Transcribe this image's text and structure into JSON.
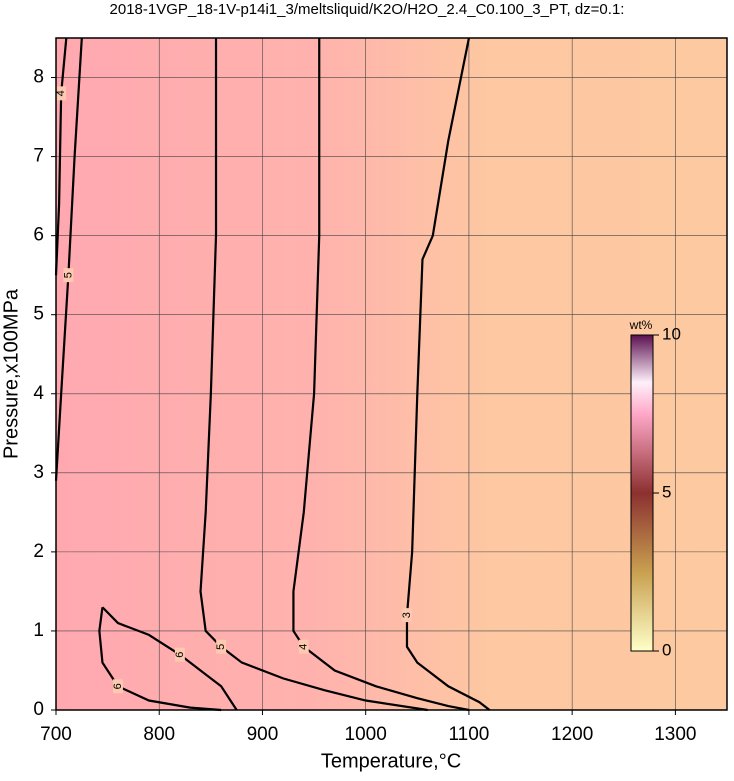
{
  "chart_data": {
    "type": "contour",
    "title": "2018-1VGP_18-1V-p14i1_3/meltsliquid/K2O/H2O_2.4_C0.100_3_PT, dz=0.1:",
    "x_label": "Temperature,°C",
    "y_label": "Pressure,x100MPa",
    "xlim": [
      700,
      1350
    ],
    "ylim": [
      0,
      8.5
    ],
    "xticks": [
      700,
      800,
      900,
      1000,
      1100,
      1200,
      1300
    ],
    "yticks": [
      0,
      1,
      2,
      3,
      4,
      5,
      6,
      7,
      8
    ],
    "grid": true,
    "contours": [
      {
        "level": 3,
        "x": [
          1100,
          1080,
          1065,
          1055,
          1050,
          1045,
          1040,
          1040,
          1050,
          1080,
          1110,
          1120
        ],
        "y": [
          8.5,
          7.2,
          6.0,
          5.7,
          4.0,
          2.0,
          1.2,
          0.8,
          0.6,
          0.3,
          0.1,
          0
        ]
      },
      {
        "level": 4,
        "x": [
          955,
          955,
          950,
          940,
          930,
          930,
          940,
          970,
          1010,
          1050,
          1080,
          1100
        ],
        "y": [
          8.5,
          6.0,
          4.0,
          2.5,
          1.5,
          1.0,
          0.8,
          0.5,
          0.3,
          0.15,
          0.05,
          0
        ]
      },
      {
        "level": 5,
        "x": [
          855,
          855,
          850,
          845,
          840,
          845,
          860,
          880,
          920,
          960,
          1000,
          1060
        ],
        "y": [
          8.5,
          6.0,
          4.0,
          2.5,
          1.5,
          1.0,
          0.8,
          0.6,
          0.4,
          0.25,
          0.12,
          0
        ]
      },
      {
        "level": 6,
        "x": [
          745,
          742,
          745,
          760,
          790,
          830,
          860
        ],
        "y": [
          1.3,
          1.0,
          0.6,
          0.3,
          0.12,
          0.03,
          0
        ]
      },
      {
        "level": 6,
        "x": [
          745,
          760,
          790,
          820,
          840,
          860,
          875
        ],
        "y": [
          1.3,
          1.1,
          0.95,
          0.7,
          0.5,
          0.3,
          0
        ]
      },
      {
        "level": 5,
        "x": [
          700,
          705,
          712,
          718,
          725
        ],
        "y": [
          2.9,
          4.0,
          5.5,
          7.0,
          8.5
        ]
      },
      {
        "level": 4,
        "x": [
          700,
          703,
          705,
          710
        ],
        "y": [
          5.5,
          6.4,
          7.8,
          8.5
        ]
      }
    ],
    "colorbar": {
      "label": "wt%",
      "lim": [
        0,
        10
      ],
      "ticks": [
        0,
        5,
        10
      ]
    }
  }
}
